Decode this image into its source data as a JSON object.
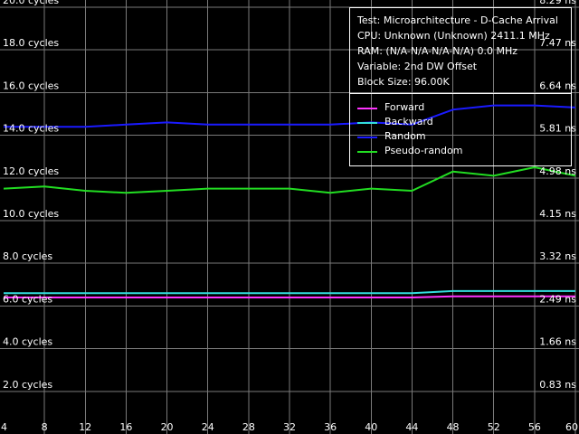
{
  "info": {
    "test": "Test: Microarchitecture - D-Cache Arrival",
    "cpu": "CPU: Unknown (Unknown) 2411.1 MHz",
    "ram": "RAM:  (N/A-N/A-N/A-N/A) 0.0 MHz",
    "variable": "Variable: 2nd DW Offset",
    "block_size": "Block Size: 96.00K"
  },
  "chart_data": {
    "type": "line",
    "title": "",
    "xlabel": "",
    "ylabel": "",
    "xlim": [
      4,
      60
    ],
    "ylim": [
      0,
      20
    ],
    "grid": true,
    "legend_position": "top-right",
    "x_ticks": [
      "4",
      "8",
      "12",
      "16",
      "20",
      "24",
      "28",
      "32",
      "36",
      "40",
      "44",
      "48",
      "52",
      "56",
      "60"
    ],
    "y_ticks_left": [
      "2.0 cycles",
      "4.0 cycles",
      "6.0 cycles",
      "8.0 cycles",
      "10.0 cycles",
      "12.0 cycles",
      "14.0 cycles",
      "16.0 cycles",
      "18.0 cycles",
      "20.0 cycles"
    ],
    "y_ticks_right": [
      "0.83 ns",
      "1.66 ns",
      "2.49 ns",
      "3.32 ns",
      "4.15 ns",
      "4.98 ns",
      "5.81 ns",
      "6.64 ns",
      "7.47 ns",
      "8.29 ns"
    ],
    "x": [
      4,
      8,
      12,
      16,
      20,
      24,
      28,
      32,
      36,
      40,
      44,
      48,
      52,
      56,
      60
    ],
    "series": [
      {
        "name": "Forward",
        "color": "#ff33ff",
        "values": [
          6.4,
          6.4,
          6.4,
          6.4,
          6.4,
          6.4,
          6.4,
          6.4,
          6.4,
          6.4,
          6.4,
          6.45,
          6.45,
          6.45,
          6.45
        ]
      },
      {
        "name": "Backward",
        "color": "#33dddd",
        "values": [
          6.6,
          6.6,
          6.6,
          6.6,
          6.6,
          6.6,
          6.6,
          6.6,
          6.6,
          6.6,
          6.6,
          6.7,
          6.7,
          6.7,
          6.7
        ]
      },
      {
        "name": "Random",
        "color": "#1a1aff",
        "values": [
          14.4,
          14.4,
          14.4,
          14.5,
          14.6,
          14.5,
          14.5,
          14.5,
          14.5,
          14.6,
          14.5,
          15.2,
          15.4,
          15.4,
          15.3
        ]
      },
      {
        "name": "Pseudo-random",
        "color": "#22dd22",
        "values": [
          11.5,
          11.6,
          11.4,
          11.3,
          11.4,
          11.5,
          11.5,
          11.5,
          11.3,
          11.5,
          11.4,
          12.3,
          12.1,
          12.5,
          12.1
        ]
      }
    ]
  }
}
